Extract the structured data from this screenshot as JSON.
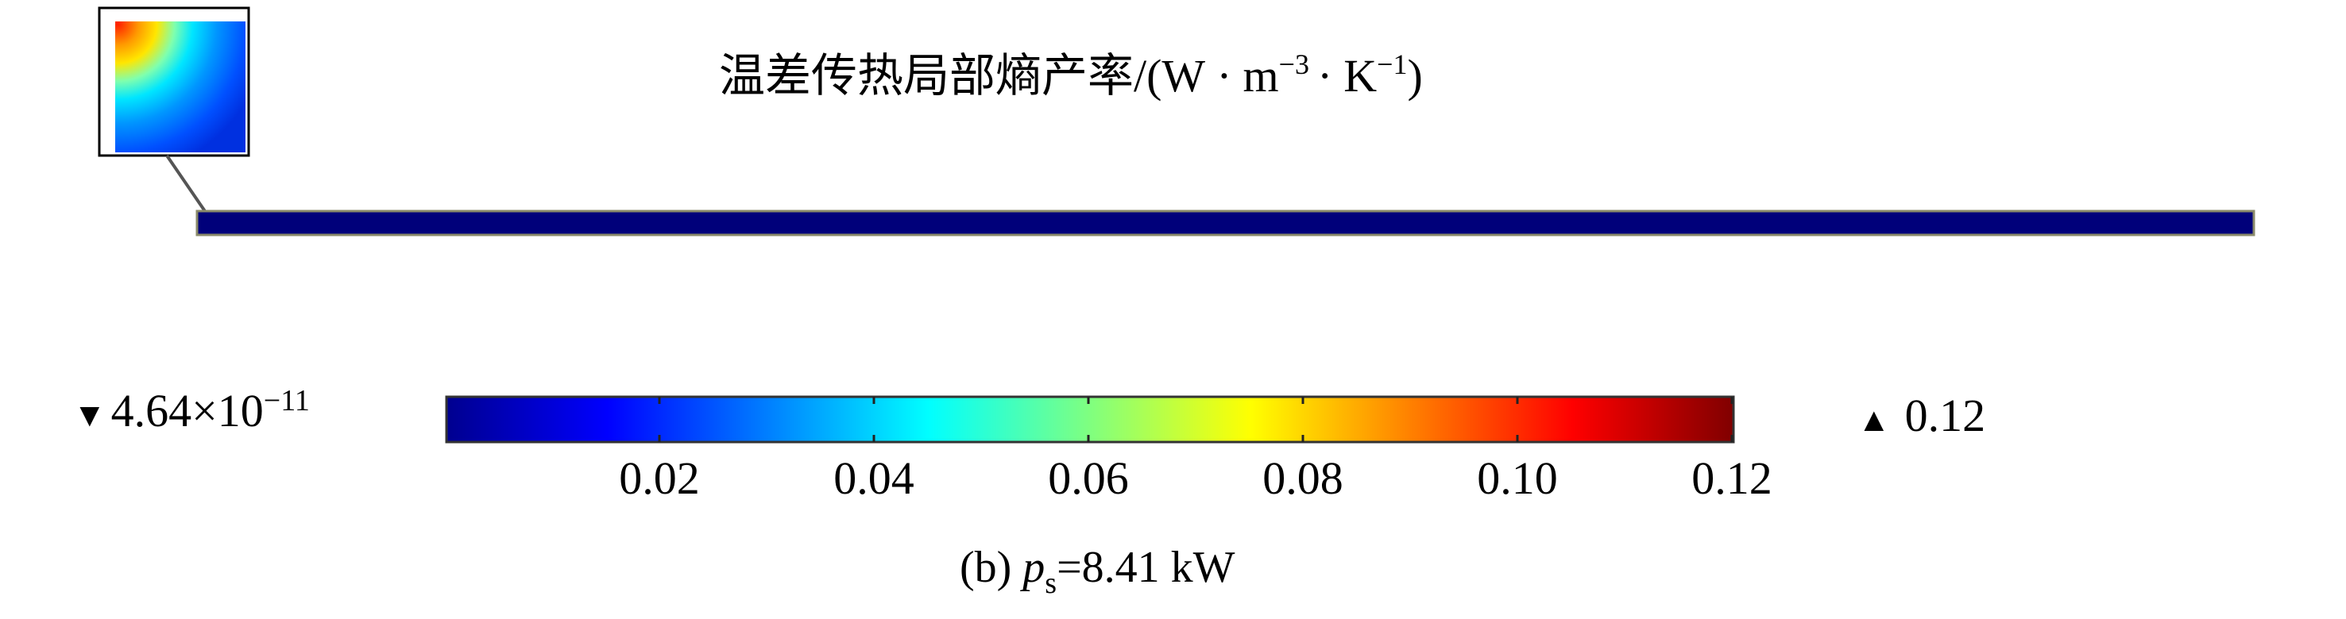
{
  "chart_data": {
    "type": "heatmap",
    "title": "温差传热局部熵产率/(W·m⁻³·K⁻¹)",
    "title_parts": {
      "main": "温差传热局部熵产率/(W",
      "dot": "·",
      "m": "m",
      "m_exp": "−3",
      "k": "K",
      "k_exp": "−1",
      "close": ")"
    },
    "colorbar": {
      "colormap": "jet",
      "range": [
        4.64e-11,
        0.12
      ],
      "ticks": [
        0.02,
        0.04,
        0.06,
        0.08,
        0.1,
        0.12
      ],
      "tick_labels": [
        "0.02",
        "0.04",
        "0.06",
        "0.08",
        "0.10",
        "0.12"
      ]
    },
    "min_label": {
      "marker": "▼",
      "mantissa": "4.64×10",
      "exponent": "−11"
    },
    "max_label": {
      "marker": "▲",
      "value": "0.12"
    },
    "caption": {
      "prefix": "(b) ",
      "var": "p",
      "sub": "s",
      "rest": "=8.41 kW"
    },
    "field": {
      "bulk_value": 4.64e-11,
      "hotspot": "top-left corner of domain (shown in zoomed inset)"
    }
  }
}
